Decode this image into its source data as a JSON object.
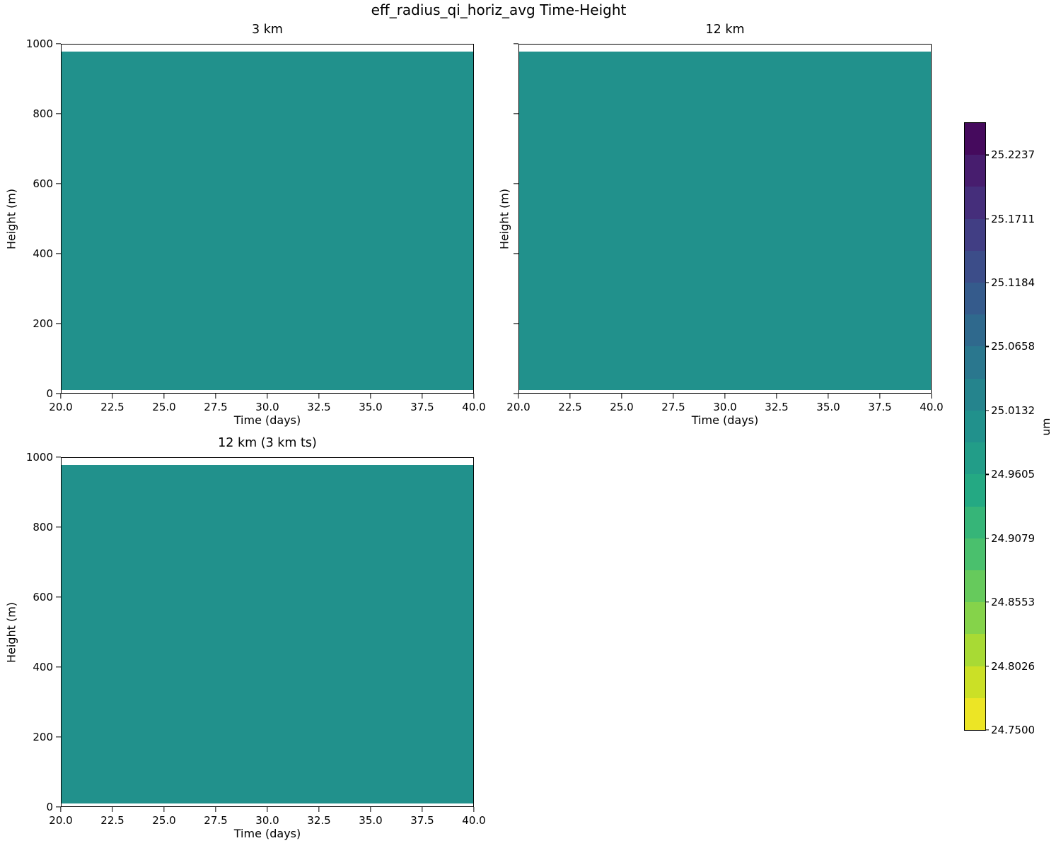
{
  "figure": {
    "title": "eff_radius_qi_horiz_avg Time-Height",
    "background_color": "#ffffff",
    "fill_color": "#21918c"
  },
  "panels": [
    {
      "title": "3 km",
      "xlabel": "Time (days)",
      "ylabel": "Height (m)",
      "x_ticks": [
        "20.0",
        "22.5",
        "25.0",
        "27.5",
        "30.0",
        "32.5",
        "35.0",
        "37.5",
        "40.0"
      ],
      "y_ticks": [
        "0",
        "200",
        "400",
        "600",
        "800",
        "1000"
      ],
      "show_y_tick_labels": true
    },
    {
      "title": "12 km",
      "xlabel": "Time (days)",
      "ylabel": "Height (m)",
      "x_ticks": [
        "20.0",
        "22.5",
        "25.0",
        "27.5",
        "30.0",
        "32.5",
        "35.0",
        "37.5",
        "40.0"
      ],
      "y_ticks": [
        "0",
        "200",
        "400",
        "600",
        "800",
        "1000"
      ],
      "show_y_tick_labels": false
    },
    {
      "title": "12 km (3 km ts)",
      "xlabel": "Time (days)",
      "ylabel": "Height (m)",
      "x_ticks": [
        "20.0",
        "22.5",
        "25.0",
        "27.5",
        "30.0",
        "32.5",
        "35.0",
        "37.5",
        "40.0"
      ],
      "y_ticks": [
        "0",
        "200",
        "400",
        "600",
        "800",
        "1000"
      ],
      "show_y_tick_labels": true
    }
  ],
  "colorbar": {
    "label": "um",
    "ticks": [
      "25.2237",
      "25.1711",
      "25.1184",
      "25.0658",
      "25.0132",
      "24.9605",
      "24.9079",
      "24.8553",
      "24.8026",
      "24.7500"
    ],
    "n_segments": 19,
    "segments_top_to_bottom": [
      "#450a5d",
      "#471d6e",
      "#452e7b",
      "#413e84",
      "#3c4d89",
      "#355b8c",
      "#2f698d",
      "#2a778e",
      "#25848d",
      "#21918c",
      "#229d88",
      "#24a983",
      "#36b578",
      "#4ac06d",
      "#66ca5c",
      "#85d34a",
      "#a8da34",
      "#cbe026",
      "#ece525"
    ]
  },
  "chart_data": {
    "type": "heatmap",
    "title": "eff_radius_qi_horiz_avg Time-Height",
    "panels": [
      {
        "title": "3 km",
        "field": "visually uniform",
        "value_um": 25.0
      },
      {
        "title": "12 km",
        "field": "visually uniform",
        "value_um": 25.0
      },
      {
        "title": "12 km (3 km ts)",
        "field": "visually uniform",
        "value_um": 25.0
      }
    ],
    "x": {
      "label": "Time (days)",
      "range": [
        20.0,
        40.0
      ],
      "ticks": [
        20.0,
        22.5,
        25.0,
        27.5,
        30.0,
        32.5,
        35.0,
        37.5,
        40.0
      ]
    },
    "y": {
      "label": "Height (m)",
      "range": [
        0,
        1000
      ],
      "ticks": [
        0,
        200,
        400,
        600,
        800,
        1000
      ],
      "data_extent_m": [
        10,
        975
      ]
    },
    "colorbar": {
      "label": "um",
      "range": [
        24.75,
        25.25
      ],
      "n_levels": 19,
      "ticks": [
        25.2237,
        25.1711,
        25.1184,
        25.0658,
        25.0132,
        24.9605,
        24.9079,
        24.8553,
        24.8026,
        24.75
      ],
      "colormap": "viridis reversed (yellow = low at bottom, dark purple = high at top)"
    },
    "grid": false,
    "legend_position": "colorbar right"
  }
}
